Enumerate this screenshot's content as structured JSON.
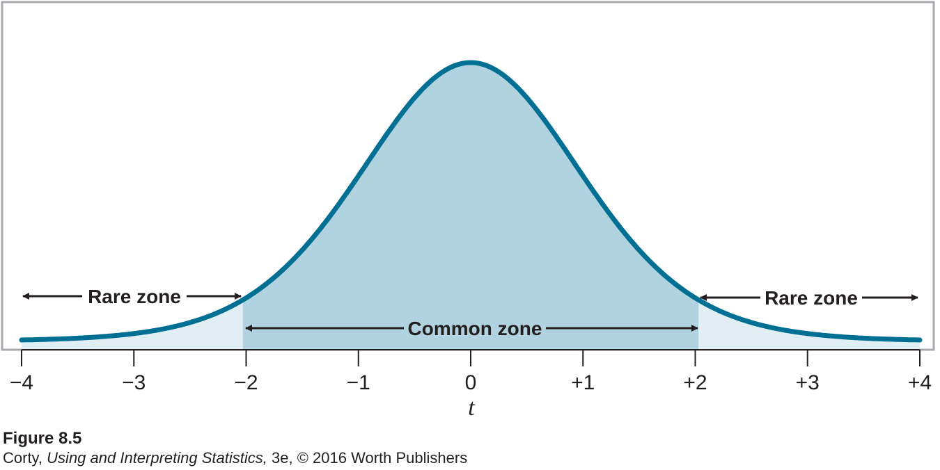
{
  "chart_data": {
    "type": "area",
    "title": "",
    "xlabel": "t",
    "ylabel": "",
    "xlim": [
      -4,
      4
    ],
    "ticks": [
      {
        "value": -4,
        "label": "−4"
      },
      {
        "value": -3,
        "label": "−3"
      },
      {
        "value": -2,
        "label": "−2"
      },
      {
        "value": -1,
        "label": "−1"
      },
      {
        "value": 0,
        "label": "0"
      },
      {
        "value": 1,
        "label": "+1"
      },
      {
        "value": 2,
        "label": "+2"
      },
      {
        "value": 3,
        "label": "+3"
      },
      {
        "value": 4,
        "label": "+4"
      }
    ],
    "distribution": "t",
    "critical_values": [
      -2.03,
      2.03
    ],
    "zones": [
      {
        "label": "Rare zone",
        "from": -4,
        "to": -2.03
      },
      {
        "label": "Common zone",
        "from": -2.03,
        "to": 2.03
      },
      {
        "label": "Rare zone",
        "from": 2.03,
        "to": 4
      }
    ],
    "grid": false,
    "colors": {
      "curve": "#006f94",
      "common_fill": "#b1d3df",
      "rare_fill": "#e1eff4",
      "frame": "#a7a9ac",
      "text": "#231f20"
    }
  },
  "caption": {
    "figure": "Figure 8.5",
    "author": "Corty,",
    "book": "Using and Interpreting Statistics,",
    "rest": "3e, © 2016 Worth Publishers"
  }
}
